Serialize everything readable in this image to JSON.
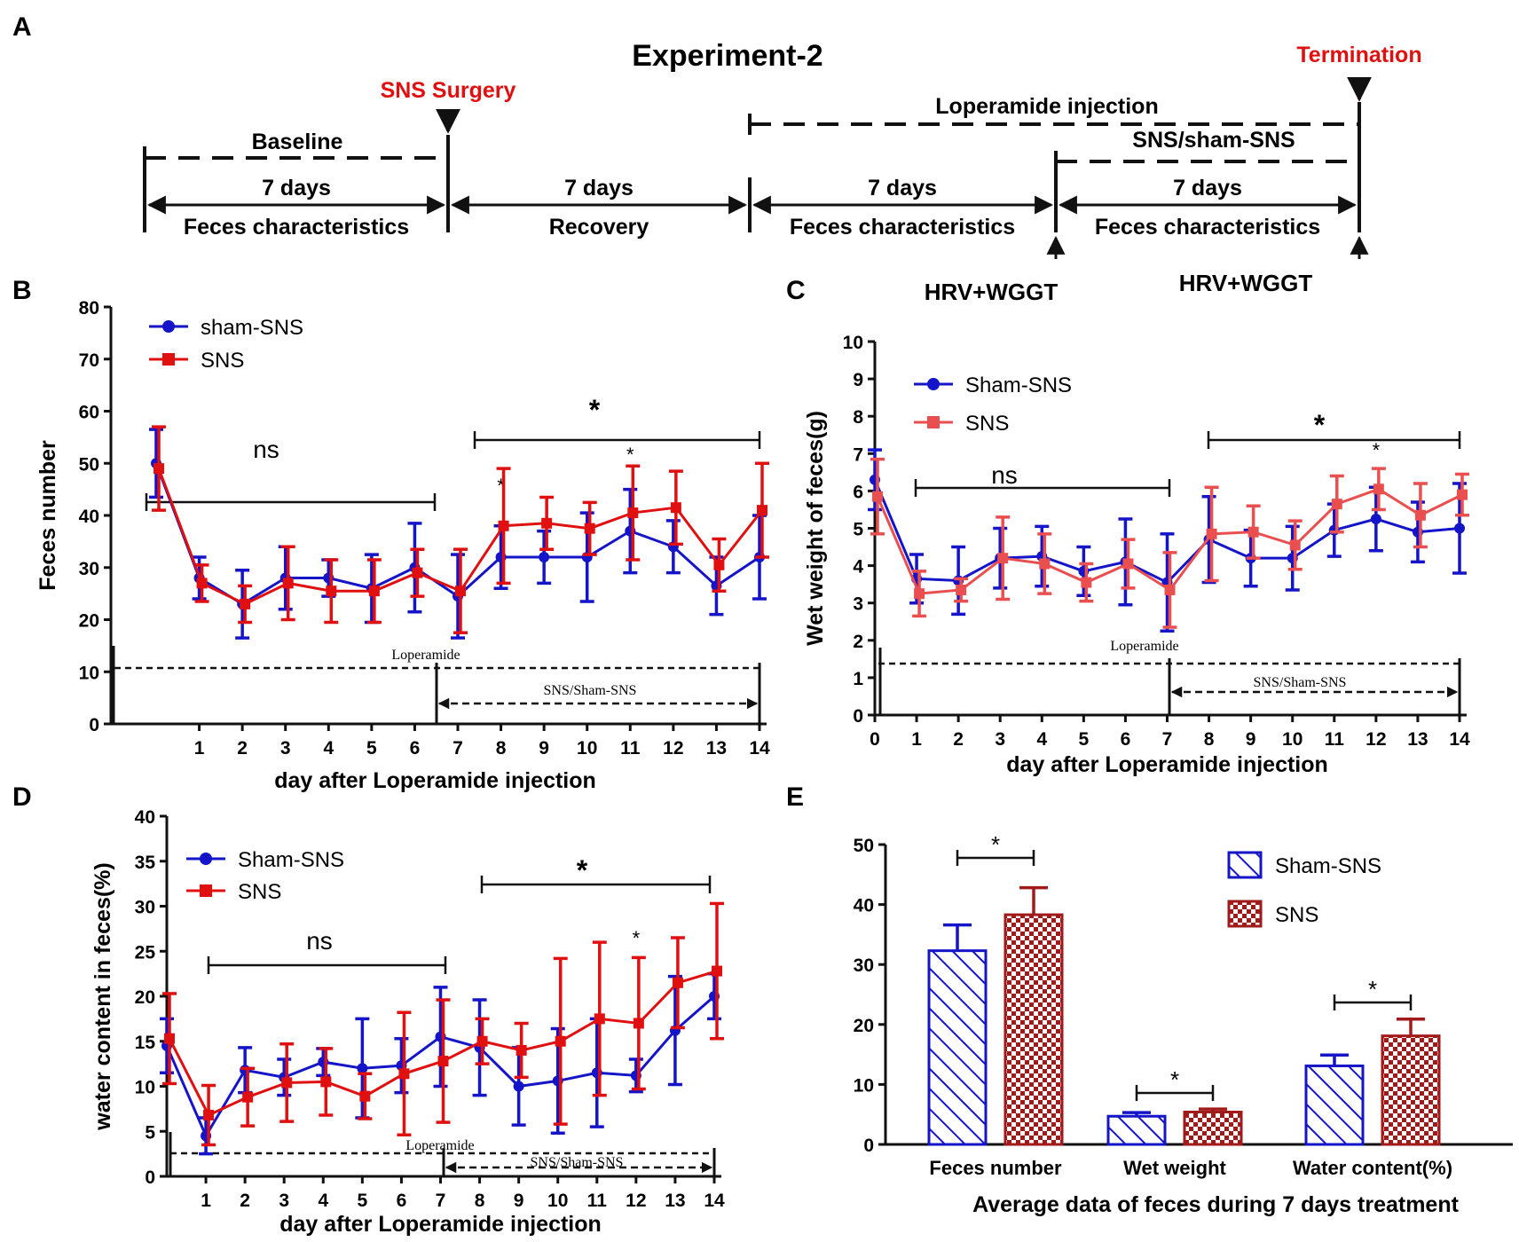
{
  "figure": {
    "panel_labels": {
      "a": "A",
      "b": "B",
      "c": "C",
      "d": "D",
      "e": "E"
    },
    "colors": {
      "blue": "#1414c8",
      "red": "#e01010",
      "pink": "#ea4f50",
      "darkred": "#a01a1a",
      "black": "#111111"
    }
  },
  "timeline": {
    "title": "Experiment-2",
    "surgery_label": "SNS Surgery",
    "termination_label": "Termination",
    "loperamide_label": "Loperamide injection",
    "baseline_label": "Baseline",
    "sns_sham_label": "SNS/sham-SNS",
    "periods": [
      {
        "top": "7 days",
        "bottom": "Feces characteristics"
      },
      {
        "top": "7 days",
        "bottom": "Recovery"
      },
      {
        "top": "7 days",
        "bottom": "Feces characteristics"
      },
      {
        "top": "7 days",
        "bottom": "Feces characteristics"
      }
    ],
    "hrv_labels": [
      "HRV+WGGT",
      "HRV+WGGT"
    ]
  },
  "chart_data": [
    {
      "id": "B",
      "type": "line",
      "xlabel": "day after Loperamide injection",
      "ylabel": "Feces number",
      "ylim": [
        0,
        80
      ],
      "yticks": [
        0,
        10,
        20,
        30,
        40,
        50,
        60,
        70,
        80
      ],
      "x": [
        0,
        1,
        2,
        3,
        4,
        5,
        6,
        7,
        8,
        9,
        10,
        11,
        12,
        13,
        14
      ],
      "xtick_labels": [
        "1",
        "2",
        "3",
        "4",
        "5",
        "6",
        "7",
        "8",
        "9",
        "10",
        "11",
        "12",
        "13",
        "14"
      ],
      "series": [
        {
          "name": "sham-SNS",
          "color": "#1414c8",
          "marker": "circle",
          "values": [
            50,
            28,
            23,
            28,
            28,
            26,
            30,
            24.5,
            32,
            32,
            32,
            37,
            34,
            26.5,
            32
          ],
          "errors": [
            6.5,
            4,
            6.5,
            6,
            3.5,
            6.5,
            8.5,
            8,
            6,
            5,
            8.5,
            8,
            5,
            5.5,
            8
          ]
        },
        {
          "name": "SNS",
          "color": "#e01010",
          "marker": "square",
          "values": [
            49,
            27,
            23,
            27,
            25.5,
            25.5,
            29,
            25.5,
            38,
            38.5,
            37.5,
            40.5,
            41.5,
            30.5,
            41
          ],
          "errors": [
            8,
            3.5,
            3.5,
            7,
            6,
            6,
            4.5,
            8,
            11,
            5,
            5,
            9,
            7,
            5,
            9
          ]
        }
      ],
      "ns_label": "ns",
      "star_label": "*",
      "loperamide_label": "Loperamide",
      "arrow_label": "SNS/Sham-SNS"
    },
    {
      "id": "C",
      "type": "line",
      "xlabel": "day after Loperamide injection",
      "ylabel": "Wet weight of feces(g)",
      "ylim": [
        0,
        10
      ],
      "yticks": [
        0,
        1,
        2,
        3,
        4,
        5,
        6,
        7,
        8,
        9,
        10
      ],
      "x": [
        0,
        1,
        2,
        3,
        4,
        5,
        6,
        7,
        8,
        9,
        10,
        11,
        12,
        13,
        14
      ],
      "xtick_labels": [
        "0",
        "1",
        "2",
        "3",
        "4",
        "5",
        "6",
        "7",
        "8",
        "9",
        "10",
        "11",
        "12",
        "13",
        "14"
      ],
      "series": [
        {
          "name": "Sham-SNS",
          "color": "#1414c8",
          "marker": "circle",
          "values": [
            6.3,
            3.65,
            3.6,
            4.2,
            4.25,
            3.85,
            4.1,
            3.55,
            4.7,
            4.2,
            4.2,
            4.95,
            5.25,
            4.9,
            5.0
          ],
          "errors": [
            0.8,
            0.65,
            0.9,
            0.8,
            0.8,
            0.65,
            1.15,
            1.3,
            1.15,
            0.75,
            0.85,
            0.7,
            0.85,
            0.8,
            1.2
          ]
        },
        {
          "name": "SNS",
          "color": "#ea4f50",
          "marker": "square",
          "values": [
            5.85,
            3.25,
            3.35,
            4.2,
            4.05,
            3.55,
            4.05,
            3.35,
            4.85,
            4.9,
            4.55,
            5.65,
            6.05,
            5.35,
            5.9
          ],
          "errors": [
            1.0,
            0.6,
            0.3,
            1.1,
            0.8,
            0.5,
            0.65,
            1.0,
            1.25,
            0.7,
            0.65,
            0.75,
            0.55,
            0.85,
            0.55
          ]
        }
      ],
      "ns_label": "ns",
      "star_label": "*",
      "loperamide_label": "Loperamide",
      "arrow_label": "SNS/Sham-SNS"
    },
    {
      "id": "D",
      "type": "line",
      "xlabel": "day after Loperamide injection",
      "ylabel": "water content in feces(%)",
      "ylim": [
        0,
        40
      ],
      "yticks": [
        0,
        5,
        10,
        15,
        20,
        25,
        30,
        35,
        40
      ],
      "x": [
        0,
        1,
        2,
        3,
        4,
        5,
        6,
        7,
        8,
        9,
        10,
        11,
        12,
        13,
        14
      ],
      "xtick_labels": [
        "1",
        "2",
        "3",
        "4",
        "5",
        "6",
        "7",
        "8",
        "9",
        "10",
        "11",
        "12",
        "13",
        "14"
      ],
      "series": [
        {
          "name": "Sham-SNS",
          "color": "#1414c8",
          "marker": "circle",
          "values": [
            14.5,
            4.5,
            11.8,
            11,
            12.7,
            12,
            12.3,
            15.5,
            14.3,
            10,
            10.6,
            11.5,
            11.2,
            16.2,
            20
          ],
          "errors": [
            3,
            2,
            2.5,
            2,
            1.5,
            5.5,
            3,
            5.5,
            5.3,
            4.3,
            5.8,
            6,
            1.8,
            6,
            2.5
          ]
        },
        {
          "name": "SNS",
          "color": "#e01010",
          "marker": "square",
          "values": [
            15.3,
            6.8,
            8.8,
            10.4,
            10.5,
            8.9,
            11.4,
            12.8,
            15,
            14,
            15,
            17.5,
            17,
            21.5,
            22.8
          ],
          "errors": [
            5,
            3.3,
            3.2,
            4.3,
            3.7,
            2.5,
            6.8,
            6.8,
            2.5,
            3,
            9.2,
            8.5,
            7.3,
            5,
            7.5
          ]
        }
      ],
      "ns_label": "ns",
      "star_label": "*",
      "loperamide_label": "Loperamide",
      "arrow_label": "SNS/Sham-SNS"
    },
    {
      "id": "E",
      "type": "bar",
      "title": "Average data of feces during 7 days treatment",
      "ylim": [
        0,
        50
      ],
      "yticks": [
        0,
        10,
        20,
        30,
        40,
        50
      ],
      "categories": [
        "Feces number",
        "Wet weight",
        "Water content(%)"
      ],
      "series": [
        {
          "name": "Sham-SNS",
          "color": "#1414c8",
          "pattern": "hatch",
          "values": [
            32.3,
            4.7,
            13.1
          ],
          "errors": [
            4.3,
            0.6,
            1.8
          ]
        },
        {
          "name": "SNS",
          "color": "#a01a1a",
          "pattern": "checker",
          "values": [
            38.3,
            5.4,
            18.1
          ],
          "errors": [
            4.5,
            0.5,
            2.8
          ]
        }
      ],
      "star_label": "*"
    }
  ]
}
